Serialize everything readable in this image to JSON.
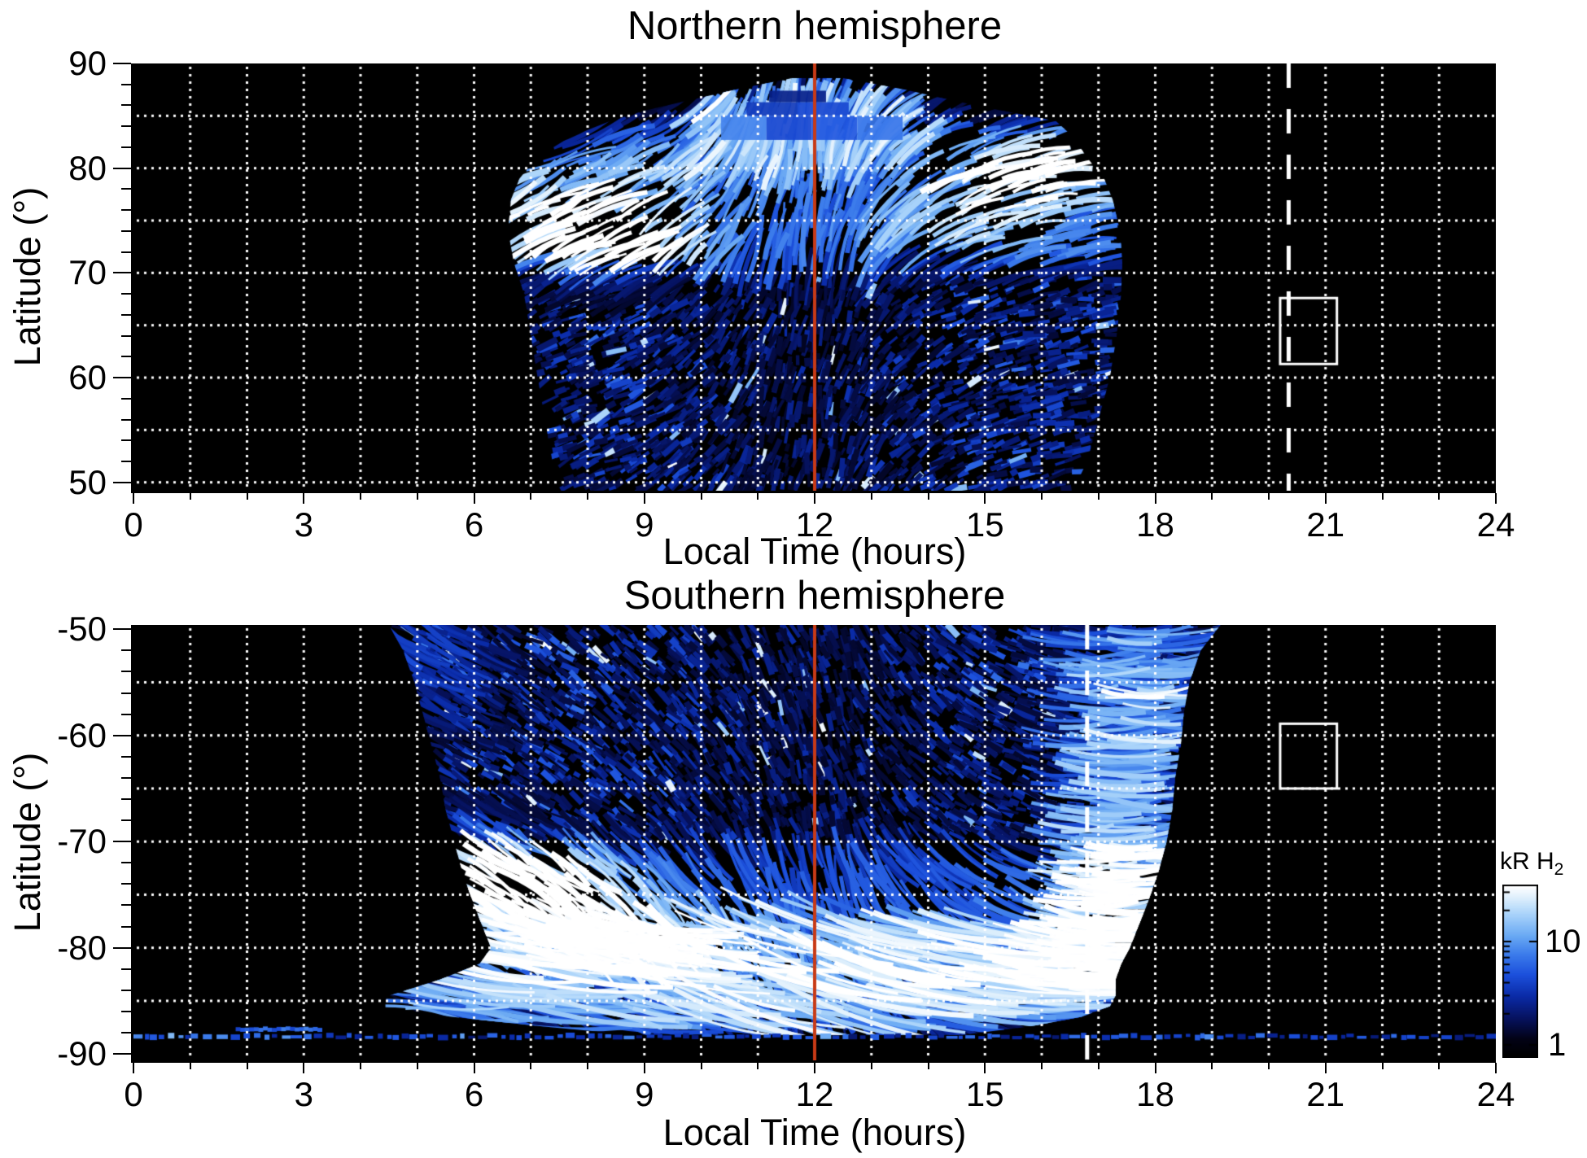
{
  "chart_data": {
    "type": "heatmap",
    "description": "Statistical maps of H2 auroral emission brightness (kR) versus local time and latitude for the northern and southern hemispheres; log color scale, red line at local noon, white dashed reference line and white selection box in each panel",
    "x": {
      "label": "Local Time (hours)",
      "min": 0,
      "max": 24,
      "unit": "hours",
      "tick_values": [
        0,
        3,
        6,
        9,
        12,
        15,
        18,
        21,
        24
      ],
      "tick_labels": [
        "0",
        "3",
        "6",
        "9",
        "12",
        "15",
        "18",
        "21",
        "24"
      ],
      "minor_step": 1,
      "grid_step": 1
    },
    "colorbar": {
      "title": "kR H",
      "subscript": "2",
      "scale": "log",
      "tick_labels": [
        "10",
        "1"
      ],
      "tick_values": [
        10,
        1
      ],
      "approx_range_kR": [
        0.8,
        34
      ],
      "colormap": [
        [
          0,
          "#000000"
        ],
        [
          0.1,
          "#020216"
        ],
        [
          0.22,
          "#06125e"
        ],
        [
          0.35,
          "#0a2aa6"
        ],
        [
          0.48,
          "#1c50dc"
        ],
        [
          0.6,
          "#3c7ceb"
        ],
        [
          0.72,
          "#6fadf4"
        ],
        [
          0.84,
          "#abd4fa"
        ],
        [
          0.93,
          "#dceefc"
        ],
        [
          1,
          "#ffffff"
        ]
      ]
    },
    "colors": {
      "plot_background": "#000000",
      "grid": "#ffffff",
      "noon_line": "#c83a16",
      "dashed_line": "#ffffff",
      "box": "#ffffff",
      "axis": "#000000"
    },
    "panels": [
      {
        "id": "north",
        "title": "Northern hemisphere",
        "y": {
          "label": "Latitude (°)",
          "tick_values": [
            90,
            80,
            70,
            60,
            50
          ],
          "tick_labels": [
            "90",
            "80",
            "70",
            "60",
            "50"
          ],
          "minor_step": 2,
          "grid_lats": [
            85,
            80,
            75,
            70,
            65,
            60,
            55,
            50
          ]
        },
        "reference": {
          "noon_lt": 12,
          "dashed_lt": 20.35,
          "box": {
            "lt0": 20.2,
            "lt1": 21.2,
            "lat0": 67.6,
            "lat1": 61.3
          }
        },
        "emission": {
          "seed": 12345,
          "mask": [
            [
              49.2,
              7.5,
              16.55
            ],
            [
              52,
              7.38,
              16.8
            ],
            [
              56,
              7.25,
              17.0
            ],
            [
              60,
              7.12,
              17.2
            ],
            [
              64,
              7.0,
              17.32
            ],
            [
              68,
              6.88,
              17.4
            ],
            [
              71,
              6.7,
              17.42
            ],
            [
              74,
              6.6,
              17.38
            ],
            [
              77,
              6.65,
              17.25
            ],
            [
              79,
              6.8,
              17.1
            ],
            [
              81,
              7.1,
              16.8
            ],
            [
              83,
              7.7,
              16.55
            ],
            [
              84.5,
              8.4,
              16.25
            ],
            [
              85.5,
              9.0,
              15.3
            ],
            [
              86.5,
              9.8,
              14.4
            ],
            [
              87.5,
              10.6,
              13.6
            ],
            [
              88.6,
              11.6,
              12.5
            ]
          ],
          "band": {
            "lat0": 69.5,
            "lat1": 84.8,
            "base": 0.42
          },
          "features": [
            [
              8.4,
              73.3,
              0.85,
              1.2,
              2.6
            ],
            [
              7.4,
              77.2,
              0.42,
              0.85,
              2.2
            ],
            [
              9.6,
              79.8,
              0.25,
              1.0,
              1.9
            ],
            [
              15.7,
              79.3,
              0.6,
              1.1,
              2.5
            ],
            [
              16.6,
              81.2,
              0.3,
              0.6,
              1.7
            ],
            [
              14.6,
              74.5,
              0.3,
              1.5,
              2.6
            ],
            [
              12.0,
              85.8,
              0.3,
              1.7,
              1.6
            ],
            [
              11.0,
              82.8,
              0.28,
              1.0,
              1.6
            ],
            [
              13.2,
              83.2,
              0.26,
              1.0,
              1.6
            ]
          ],
          "tilt": [
            [
              6.6,
              -30
            ],
            [
              8,
              -22
            ],
            [
              9,
              -28
            ],
            [
              10,
              -45
            ],
            [
              11,
              -70
            ],
            [
              12,
              -82
            ],
            [
              12.8,
              -65
            ],
            [
              13.6,
              -40
            ],
            [
              14.5,
              -24
            ],
            [
              15.5,
              -16
            ],
            [
              16.5,
              -12
            ],
            [
              17.4,
              -10
            ]
          ],
          "streaks": {
            "count": 2600,
            "lmin": 26,
            "lmax": 95
          },
          "fingers": {
            "count": 260,
            "lt0": 9.8,
            "lt1": 13.8,
            "lat0": 79.5,
            "lat1": 87
          },
          "speckle": {
            "count": 3400,
            "lat0": 49.3,
            "lat1": 69.5
          },
          "blocks": [
            [
              10.35,
              11.15,
              82.7,
              85.0,
              0.62
            ],
            [
              11.15,
              11.95,
              82.7,
              85.0,
              0.45
            ],
            [
              11.95,
              12.75,
              82.7,
              85.0,
              0.5
            ],
            [
              12.75,
              13.55,
              82.7,
              85.0,
              0.58
            ],
            [
              10.8,
              11.7,
              85.0,
              86.3,
              0.4
            ],
            [
              11.7,
              12.6,
              85.0,
              86.3,
              0.45
            ],
            [
              11.2,
              12.2,
              86.3,
              87.4,
              0.3
            ]
          ]
        }
      },
      {
        "id": "south",
        "title": "Southern hemisphere",
        "y": {
          "label": "Latitude (°)",
          "tick_values": [
            -50,
            -60,
            -70,
            -80,
            -90
          ],
          "tick_labels": [
            "-50",
            "-60",
            "-70",
            "-80",
            "-90"
          ],
          "minor_step": 2,
          "grid_lats": [
            -55,
            -60,
            -65,
            -70,
            -75,
            -80,
            -85
          ]
        },
        "reference": {
          "noon_lt": 12,
          "dashed_lt": 16.8,
          "box": {
            "lt0": 20.2,
            "lt1": 21.2,
            "lat0": -58.9,
            "lat1": -65.0
          }
        },
        "emission": {
          "seed": 67890,
          "mask": [
            [
              -49.6,
              4.5,
              19.15
            ],
            [
              -52,
              4.75,
              18.8
            ],
            [
              -55,
              4.95,
              18.6
            ],
            [
              -58,
              5.1,
              18.5
            ],
            [
              -61,
              5.25,
              18.45
            ],
            [
              -64,
              5.4,
              18.35
            ],
            [
              -67,
              5.5,
              18.3
            ],
            [
              -70,
              5.65,
              18.2
            ],
            [
              -73,
              5.8,
              18.05
            ],
            [
              -76,
              6.0,
              17.85
            ],
            [
              -78,
              6.15,
              17.7
            ],
            [
              -80,
              6.3,
              17.55
            ],
            [
              -81.5,
              6.1,
              17.4
            ],
            [
              -83,
              5.4,
              17.3
            ],
            [
              -84.5,
              4.5,
              17.3
            ],
            [
              -85.5,
              4.3,
              17.2
            ],
            [
              -86.5,
              5.6,
              16.7
            ],
            [
              -87.4,
              7.2,
              15.8
            ],
            [
              -88.2,
              8.8,
              14.6
            ]
          ],
          "band": {
            "lat0": -84.8,
            "lat1": -69.5,
            "base": 0.4
          },
          "features": [
            [
              6.9,
              -73.8,
              0.95,
              1.1,
              2.4
            ],
            [
              8.6,
              -77.8,
              0.5,
              1.4,
              2.1
            ],
            [
              5.9,
              -70.3,
              0.35,
              0.9,
              2.6
            ],
            [
              8.2,
              -80.5,
              0.4,
              1.6,
              1.8
            ],
            [
              17.7,
              -56,
              0.5,
              0.8,
              6
            ],
            [
              17.35,
              -71,
              0.45,
              0.75,
              5
            ],
            [
              16.9,
              -80,
              0.5,
              0.8,
              3
            ],
            [
              11.5,
              -85.9,
              0.4,
              3.5,
              1.3
            ],
            [
              13.5,
              -82.6,
              0.3,
              2.6,
              1.8
            ],
            [
              5.2,
              -51.5,
              0.3,
              0.8,
              2.5
            ],
            [
              5.6,
              -56,
              0.25,
              0.8,
              3
            ]
          ],
          "tilt": [
            [
              4.5,
              28
            ],
            [
              6,
              30
            ],
            [
              7,
              33
            ],
            [
              8.5,
              40
            ],
            [
              10,
              50
            ],
            [
              11.5,
              70
            ],
            [
              12.5,
              72
            ],
            [
              13.5,
              50
            ],
            [
              15,
              30
            ],
            [
              16.2,
              15
            ],
            [
              17,
              6
            ],
            [
              18,
              2
            ],
            [
              19,
              0
            ]
          ],
          "streaks": {
            "count": 2900,
            "lmin": 26,
            "lmax": 100
          },
          "bandstreaks": {
            "count": 400,
            "lt0": 16.6,
            "lt1": 18.55,
            "lat0": -84,
            "lat1": -50
          },
          "bottomarcs": {
            "count": 520,
            "lat0": -86.8,
            "lat1": -77
          },
          "speckle": {
            "count": 3600,
            "lat0": -69.5,
            "lat1": -49.7
          },
          "stripe": {
            "lat": -88.35,
            "lt0": 0,
            "lt1": 24,
            "extra_lt0": 1.8,
            "extra_lt1": 3.3,
            "extra_lat": -87.7
          }
        }
      }
    ]
  }
}
